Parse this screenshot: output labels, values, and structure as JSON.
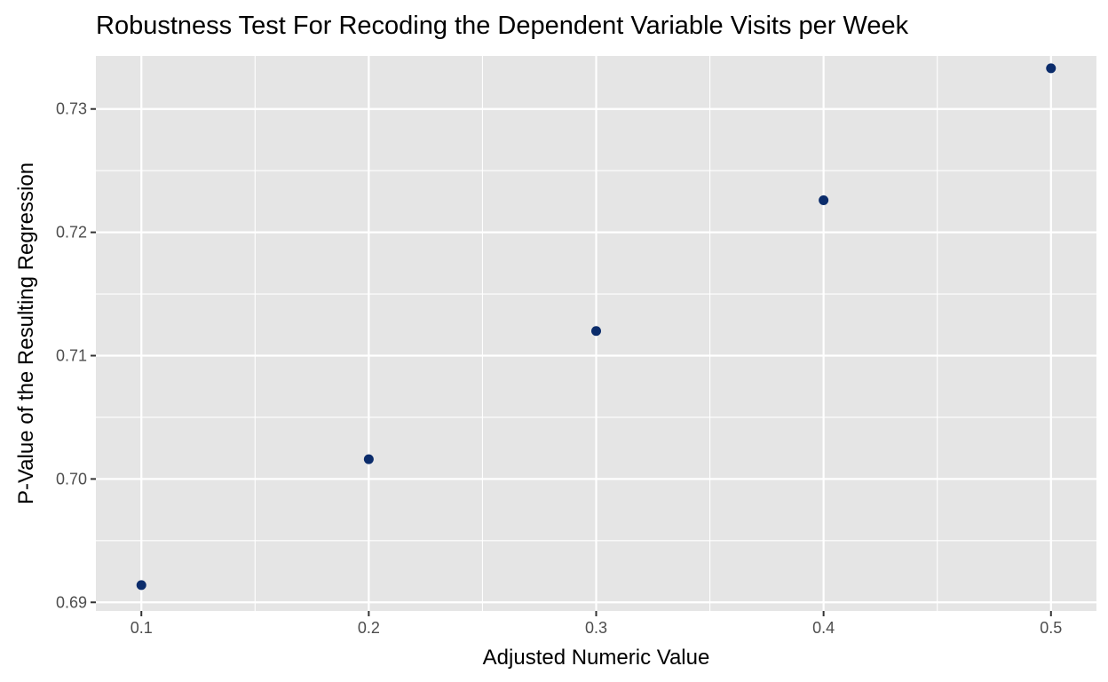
{
  "chart_data": {
    "type": "scatter",
    "title": "Robustness Test For Recoding the Dependent Variable Visits per Week",
    "xlabel": "Adjusted Numeric Value",
    "ylabel": "P-Value of the Resulting Regression",
    "xlim": [
      0.08,
      0.52
    ],
    "ylim": [
      0.6893,
      0.7343
    ],
    "x_ticks": [
      0.1,
      0.2,
      0.3,
      0.4,
      0.5
    ],
    "x_tick_labels": [
      "0.1",
      "0.2",
      "0.3",
      "0.4",
      "0.5"
    ],
    "y_ticks": [
      0.69,
      0.7,
      0.71,
      0.72,
      0.73
    ],
    "y_tick_labels": [
      "0.69",
      "0.70",
      "0.71",
      "0.72",
      "0.73"
    ],
    "grid": true,
    "point_color": "#0b2c6b",
    "panel_color": "#e5e5e5",
    "grid_color": "#ffffff",
    "points": [
      {
        "x": 0.1,
        "y": 0.6914
      },
      {
        "x": 0.2,
        "y": 0.7016
      },
      {
        "x": 0.3,
        "y": 0.712
      },
      {
        "x": 0.4,
        "y": 0.7226
      },
      {
        "x": 0.5,
        "y": 0.7333
      }
    ]
  }
}
